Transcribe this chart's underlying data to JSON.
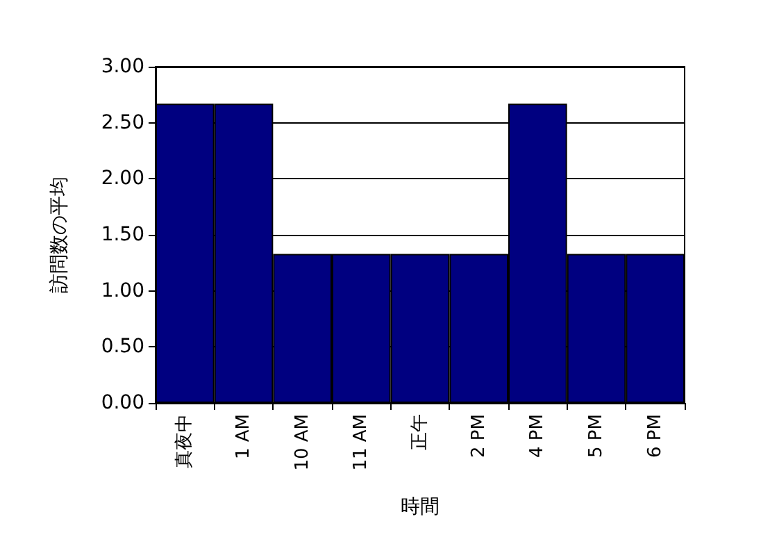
{
  "chart_data": {
    "type": "bar",
    "xlabel": "時間",
    "ylabel": "訪問数の平均",
    "categories": [
      "真夜中",
      "1 AM",
      "10 AM",
      "11 AM",
      "正午",
      "2 PM",
      "4 PM",
      "5 PM",
      "6 PM"
    ],
    "values": [
      2.67,
      2.67,
      1.33,
      1.33,
      1.33,
      1.33,
      2.67,
      1.33,
      1.33
    ],
    "color": "#000080",
    "ylim": [
      0,
      3
    ],
    "yticks": [
      {
        "value": 0,
        "label": "0.00"
      },
      {
        "value": 0.5,
        "label": "0.50"
      },
      {
        "value": 1,
        "label": "1.00"
      },
      {
        "value": 1.5,
        "label": "1.50"
      },
      {
        "value": 2,
        "label": "2.00"
      },
      {
        "value": 2.5,
        "label": "2.50"
      },
      {
        "value": 3,
        "label": "3.00"
      }
    ],
    "grid": "y"
  }
}
